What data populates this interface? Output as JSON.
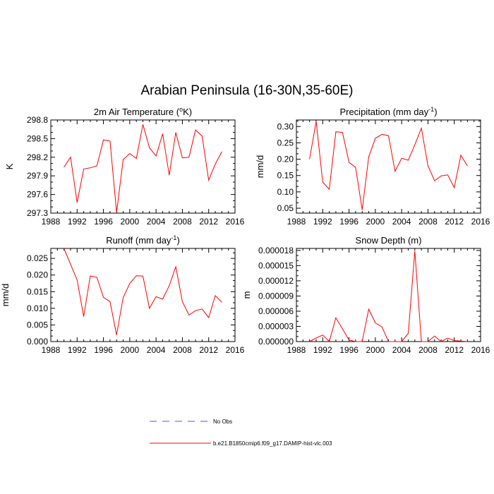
{
  "title": "Arabian Peninsula (16-30N,35-60E)",
  "legend": {
    "placement": "bottom-center",
    "items": [
      {
        "label": "No Obs",
        "color": "#5050ff",
        "dash": true
      },
      {
        "label": "b.e21.B1850cmip6.f09_g17.DAMIP-hist-vlc.003",
        "color": "#ff0000",
        "dash": false
      }
    ]
  },
  "chart_data": [
    {
      "type": "line",
      "title_main": "2m Air Temperature (",
      "title_sup": "o",
      "title_tail": "K)",
      "xlabel": "",
      "ylabel": "K",
      "xlim": [
        1988,
        2016
      ],
      "ylim": [
        297.3,
        298.8
      ],
      "xticks": [
        1988,
        1992,
        1996,
        2000,
        2004,
        2008,
        2012,
        2016
      ],
      "xtick_labels": [
        "1988",
        "1992",
        "1996",
        "2000",
        "2004",
        "2008",
        "2012",
        "2016"
      ],
      "yticks": [
        297.3,
        297.6,
        297.9,
        298.2,
        298.5,
        298.8
      ],
      "ytick_labels": [
        "297.3",
        "297.6",
        "297.9",
        "298.2",
        "298.5",
        "298.8"
      ],
      "grid": false,
      "series": [
        {
          "color": "#ff0000",
          "x": [
            1990,
            1991,
            1992,
            1993,
            1994,
            1995,
            1996,
            1997,
            1998,
            1999,
            2000,
            2001,
            2002,
            2003,
            2004,
            2005,
            2006,
            2007,
            2008,
            2009,
            2010,
            2011,
            2012,
            2013,
            2014
          ],
          "y": [
            298.04,
            298.2,
            297.47,
            298.01,
            298.03,
            298.06,
            298.48,
            298.46,
            297.31,
            298.16,
            298.26,
            298.18,
            298.73,
            298.35,
            298.22,
            298.58,
            297.91,
            298.6,
            298.19,
            298.2,
            298.64,
            298.54,
            297.83,
            298.09,
            298.29
          ]
        }
      ]
    },
    {
      "type": "line",
      "title_main": "Precipitation (mm day",
      "title_sup": "-1",
      "title_tail": ")",
      "xlabel": "",
      "ylabel": "mm/d",
      "xlim": [
        1988,
        2016
      ],
      "ylim": [
        0.035,
        0.32
      ],
      "xticks": [
        1988,
        1992,
        1996,
        2000,
        2004,
        2008,
        2012,
        2016
      ],
      "xtick_labels": [
        "1988",
        "1992",
        "1996",
        "2000",
        "2004",
        "2008",
        "2012",
        "2016"
      ],
      "yticks": [
        0.05,
        0.1,
        0.15,
        0.2,
        0.25,
        0.3
      ],
      "ytick_labels": [
        "0.05",
        "0.10",
        "0.15",
        "0.20",
        "0.25",
        "0.30"
      ],
      "grid": false,
      "series": [
        {
          "color": "#ff0000",
          "x": [
            1990,
            1991,
            1992,
            1993,
            1994,
            1995,
            1996,
            1997,
            1998,
            1999,
            2000,
            2001,
            2002,
            2003,
            2004,
            2005,
            2006,
            2007,
            2008,
            2009,
            2010,
            2011,
            2012,
            2013,
            2014
          ],
          "y": [
            0.2,
            0.316,
            0.13,
            0.108,
            0.284,
            0.282,
            0.19,
            0.175,
            0.045,
            0.207,
            0.264,
            0.276,
            0.272,
            0.163,
            0.203,
            0.197,
            0.244,
            0.295,
            0.18,
            0.134,
            0.149,
            0.152,
            0.113,
            0.212,
            0.179
          ]
        }
      ]
    },
    {
      "type": "line",
      "title_main": "Runoff (mm day",
      "title_sup": "-1",
      "title_tail": ")",
      "xlabel": "",
      "ylabel": "mm/d",
      "xlim": [
        1988,
        2016
      ],
      "ylim": [
        0,
        0.028
      ],
      "xticks": [
        1988,
        1992,
        1996,
        2000,
        2004,
        2008,
        2012,
        2016
      ],
      "xtick_labels": [
        "1988",
        "1992",
        "1996",
        "2000",
        "2004",
        "2008",
        "2012",
        "2016"
      ],
      "yticks": [
        0,
        0.005,
        0.01,
        0.015,
        0.02,
        0.025
      ],
      "ytick_labels": [
        "0.000",
        "0.005",
        "0.010",
        "0.015",
        "0.020",
        "0.025"
      ],
      "grid": false,
      "series": [
        {
          "color": "#ff0000",
          "x": [
            1990,
            1991,
            1992,
            1993,
            1994,
            1995,
            1996,
            1997,
            1998,
            1999,
            2000,
            2001,
            2002,
            2003,
            2004,
            2005,
            2006,
            2007,
            2008,
            2009,
            2010,
            2011,
            2012,
            2013,
            2014
          ],
          "y": [
            0.028,
            0.0232,
            0.0185,
            0.0075,
            0.0197,
            0.0193,
            0.0133,
            0.012,
            0.002,
            0.0132,
            0.0175,
            0.0198,
            0.0197,
            0.01,
            0.0135,
            0.0128,
            0.0168,
            0.0225,
            0.012,
            0.008,
            0.0093,
            0.0098,
            0.0072,
            0.0138,
            0.0118
          ]
        }
      ]
    },
    {
      "type": "line",
      "title_main": "Snow Depth (m)",
      "title_sup": "",
      "title_tail": "",
      "xlabel": "",
      "ylabel": "m",
      "xlim": [
        1988,
        2016
      ],
      "ylim": [
        0,
        1.84e-05
      ],
      "xticks": [
        1988,
        1992,
        1996,
        2000,
        2004,
        2008,
        2012,
        2016
      ],
      "xtick_labels": [
        "1988",
        "1992",
        "1996",
        "2000",
        "2004",
        "2008",
        "2012",
        "2016"
      ],
      "yticks": [
        0,
        3e-06,
        6e-06,
        9e-06,
        1.2e-05,
        1.5e-05,
        1.8e-05
      ],
      "ytick_labels": [
        "0.000000",
        "0.000003",
        "0.000006",
        "0.000009",
        "0.000012",
        "0.000015",
        "0.000018"
      ],
      "grid": false,
      "series": [
        {
          "color": "#ff0000",
          "x": [
            1990,
            1991,
            1992,
            1993,
            1994,
            1995,
            1996,
            1997,
            1998,
            1999,
            2000,
            2001,
            2002,
            2003,
            2004,
            2005,
            2006,
            2007,
            2008,
            2009,
            2010,
            2011,
            2012,
            2013,
            2014
          ],
          "y": [
            0,
            7e-07,
            1.3e-06,
            0,
            4.7e-06,
            2.5e-06,
            3e-07,
            0,
            0,
            6.4e-06,
            3.7e-06,
            2.9e-06,
            0,
            0,
            0,
            1.6e-06,
            1.79e-05,
            0,
            0,
            1.1e-06,
            0,
            7e-07,
            2e-07,
            1e-07,
            0
          ]
        }
      ]
    }
  ]
}
